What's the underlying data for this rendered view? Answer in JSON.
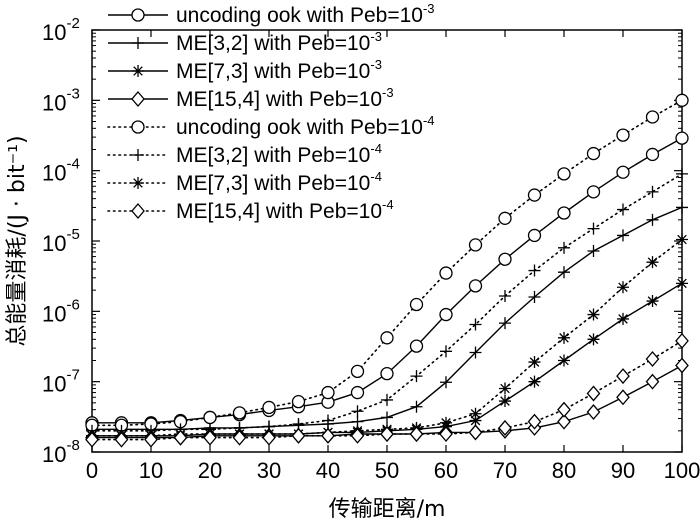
{
  "chart_data": {
    "type": "line",
    "title": "",
    "xlabel": "传输距离/m",
    "ylabel": "总能量消耗/(J · bit⁻¹)",
    "xlim": [
      0,
      100
    ],
    "ylim": [
      1e-08,
      0.01
    ],
    "yscale": "log",
    "grid": false,
    "legend_position": "top-left",
    "x_ticks": [
      "0",
      "10",
      "20",
      "30",
      "40",
      "50",
      "60",
      "70",
      "80",
      "90",
      "100"
    ],
    "y_ticks": [
      {
        "base": "10",
        "exp": "-8"
      },
      {
        "base": "10",
        "exp": "-7"
      },
      {
        "base": "10",
        "exp": "-6"
      },
      {
        "base": "10",
        "exp": "-5"
      },
      {
        "base": "10",
        "exp": "-4"
      },
      {
        "base": "10",
        "exp": "-3"
      },
      {
        "base": "10",
        "exp": "-2"
      }
    ],
    "x": [
      0,
      5,
      10,
      15,
      20,
      25,
      30,
      35,
      40,
      45,
      50,
      55,
      60,
      65,
      70,
      75,
      80,
      85,
      90,
      95,
      100
    ],
    "series": [
      {
        "name_text": "uncoding ook with Peb=10",
        "name_exp": "-3",
        "marker": "circle",
        "line_style": "solid",
        "values": [
          2.6e-08,
          2.6e-08,
          2.6e-08,
          2.8e-08,
          3.1e-08,
          3.4e-08,
          3.9e-08,
          4.4e-08,
          5.1e-08,
          7e-08,
          1.3e-07,
          3.2e-07,
          9e-07,
          2.3e-06,
          5.5e-06,
          1.2e-05,
          2.5e-05,
          5e-05,
          9.5e-05,
          0.00017,
          0.00029
        ]
      },
      {
        "name_text": "ME[3,2] with Peb=10",
        "name_exp": "-3",
        "marker": "plus",
        "line_style": "solid",
        "values": [
          2.1e-08,
          2.1e-08,
          2.1e-08,
          2.1e-08,
          2.2e-08,
          2.2e-08,
          2.3e-08,
          2.4e-08,
          2.5e-08,
          2.7e-08,
          3.1e-08,
          4.4e-08,
          9.8e-08,
          2.6e-07,
          6.8e-07,
          1.6e-06,
          3.6e-06,
          7.2e-06,
          1.2e-05,
          2e-05,
          3e-05
        ]
      },
      {
        "name_text": "ME[7,3] with Peb=10",
        "name_exp": "-3",
        "marker": "asterisk",
        "line_style": "solid",
        "values": [
          1.7e-08,
          1.7e-08,
          1.7e-08,
          1.7e-08,
          1.8e-08,
          1.8e-08,
          1.8e-08,
          1.8e-08,
          1.9e-08,
          1.9e-08,
          2e-08,
          2.1e-08,
          2.3e-08,
          2.8e-08,
          5.3e-08,
          1e-07,
          2e-07,
          4e-07,
          7.8e-07,
          1.4e-06,
          2.5e-06
        ]
      },
      {
        "name_text": "ME[15,4] with Peb=10",
        "name_exp": "-3",
        "marker": "diamond",
        "line_style": "solid",
        "values": [
          1.6e-08,
          1.6e-08,
          1.6e-08,
          1.6e-08,
          1.7e-08,
          1.7e-08,
          1.7e-08,
          1.7e-08,
          1.7e-08,
          1.8e-08,
          1.8e-08,
          1.8e-08,
          1.9e-08,
          1.9e-08,
          2e-08,
          2.2e-08,
          2.7e-08,
          3.7e-08,
          6e-08,
          1e-07,
          1.7e-07
        ]
      },
      {
        "name_text": "uncoding ook with Peb=10",
        "name_exp": "-4",
        "marker": "circle",
        "line_style": "dotted",
        "values": [
          2.4e-08,
          2.4e-08,
          2.5e-08,
          2.7e-08,
          3.1e-08,
          3.6e-08,
          4.3e-08,
          5.2e-08,
          7e-08,
          1.4e-07,
          4.2e-07,
          1.25e-06,
          3.5e-06,
          8.8e-06,
          2.1e-05,
          4.5e-05,
          9e-05,
          0.000175,
          0.00032,
          0.00058,
          0.001
        ]
      },
      {
        "name_text": "ME[3,2] with Peb=10",
        "name_exp": "-4",
        "marker": "plus",
        "line_style": "dotted",
        "values": [
          2e-08,
          2e-08,
          2e-08,
          2.1e-08,
          2.1e-08,
          2.2e-08,
          2.3e-08,
          2.5e-08,
          2.8e-08,
          3.8e-08,
          5.5e-08,
          1.2e-07,
          2.7e-07,
          6.5e-07,
          1.65e-06,
          3.8e-06,
          8e-06,
          1.5e-05,
          2.8e-05,
          5e-05,
          9e-05
        ]
      },
      {
        "name_text": "ME[7,3] with Peb=10",
        "name_exp": "-4",
        "marker": "asterisk",
        "line_style": "dotted",
        "values": [
          1.7e-08,
          1.7e-08,
          1.7e-08,
          1.8e-08,
          1.8e-08,
          1.8e-08,
          1.8e-08,
          1.8e-08,
          1.9e-08,
          2e-08,
          2.1e-08,
          2.2e-08,
          2.6e-08,
          3.5e-08,
          8e-08,
          1.9e-07,
          4.2e-07,
          9e-07,
          2.2e-06,
          5e-06,
          1.05e-05
        ]
      },
      {
        "name_text": "ME[15,4] with Peb=10",
        "name_exp": "-4",
        "marker": "diamond",
        "line_style": "dotted",
        "values": [
          1.5e-08,
          1.5e-08,
          1.5e-08,
          1.6e-08,
          1.6e-08,
          1.6e-08,
          1.6e-08,
          1.7e-08,
          1.7e-08,
          1.7e-08,
          1.8e-08,
          1.8e-08,
          1.8e-08,
          1.9e-08,
          2.2e-08,
          2.7e-08,
          4e-08,
          6.8e-08,
          1.2e-07,
          2.1e-07,
          3.8e-07
        ]
      }
    ]
  }
}
